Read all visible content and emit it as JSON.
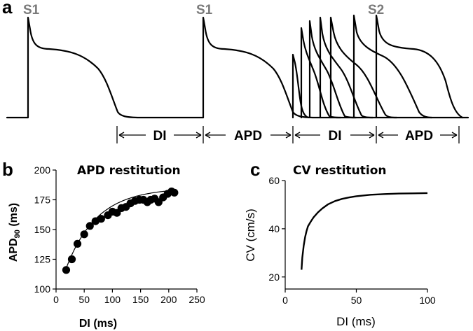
{
  "panel_a": {
    "label": "a",
    "stimuli": [
      "S1",
      "S1",
      "S2"
    ],
    "intervals": [
      "DI",
      "APD",
      "DI",
      "APD"
    ]
  },
  "panel_b": {
    "label": "b"
  },
  "panel_c": {
    "label": "c"
  },
  "chart_data": [
    {
      "type": "scatter",
      "title": "APD restitution",
      "xlabel": "DI (ms)",
      "ylabel": "APD90 (ms)",
      "ylabel_main": "APD",
      "ylabel_sub": "90",
      "ylabel_unit": " (ms)",
      "xlim": [
        0,
        250
      ],
      "ylim": [
        100,
        200
      ],
      "xticks": [
        0,
        50,
        100,
        150,
        200,
        250
      ],
      "yticks": [
        100,
        125,
        150,
        175,
        200
      ],
      "fit_line": true,
      "series": [
        {
          "x": [
            18,
            28,
            38,
            50,
            60,
            70,
            80,
            92,
            100,
            108,
            116,
            124,
            132,
            140,
            148,
            155,
            162,
            168,
            175,
            182,
            190,
            198,
            205,
            210
          ],
          "y": [
            116,
            125,
            138,
            146,
            153,
            157,
            159,
            162,
            165,
            164,
            168,
            169,
            172,
            174,
            175,
            175,
            173,
            175,
            176,
            173,
            177,
            180,
            182,
            181
          ]
        }
      ]
    },
    {
      "type": "line",
      "title": "CV restitution",
      "xlabel": "DI (ms)",
      "ylabel": "CV (cm/s)",
      "xlim": [
        0,
        100
      ],
      "ylim": [
        15,
        60
      ],
      "xticks": [
        0,
        50,
        100
      ],
      "yticks": [
        20,
        40,
        60
      ],
      "series": [
        {
          "x": [
            11.5,
            12,
            13,
            14,
            15,
            16,
            18,
            20,
            23,
            26,
            30,
            35,
            40,
            45,
            50,
            60,
            70,
            80,
            90,
            100
          ],
          "y": [
            23,
            28,
            33,
            36.5,
            39,
            41,
            43,
            44.8,
            46.8,
            48.4,
            50.1,
            51.5,
            52.4,
            53,
            53.5,
            54.1,
            54.4,
            54.6,
            54.7,
            54.8
          ]
        }
      ]
    }
  ]
}
